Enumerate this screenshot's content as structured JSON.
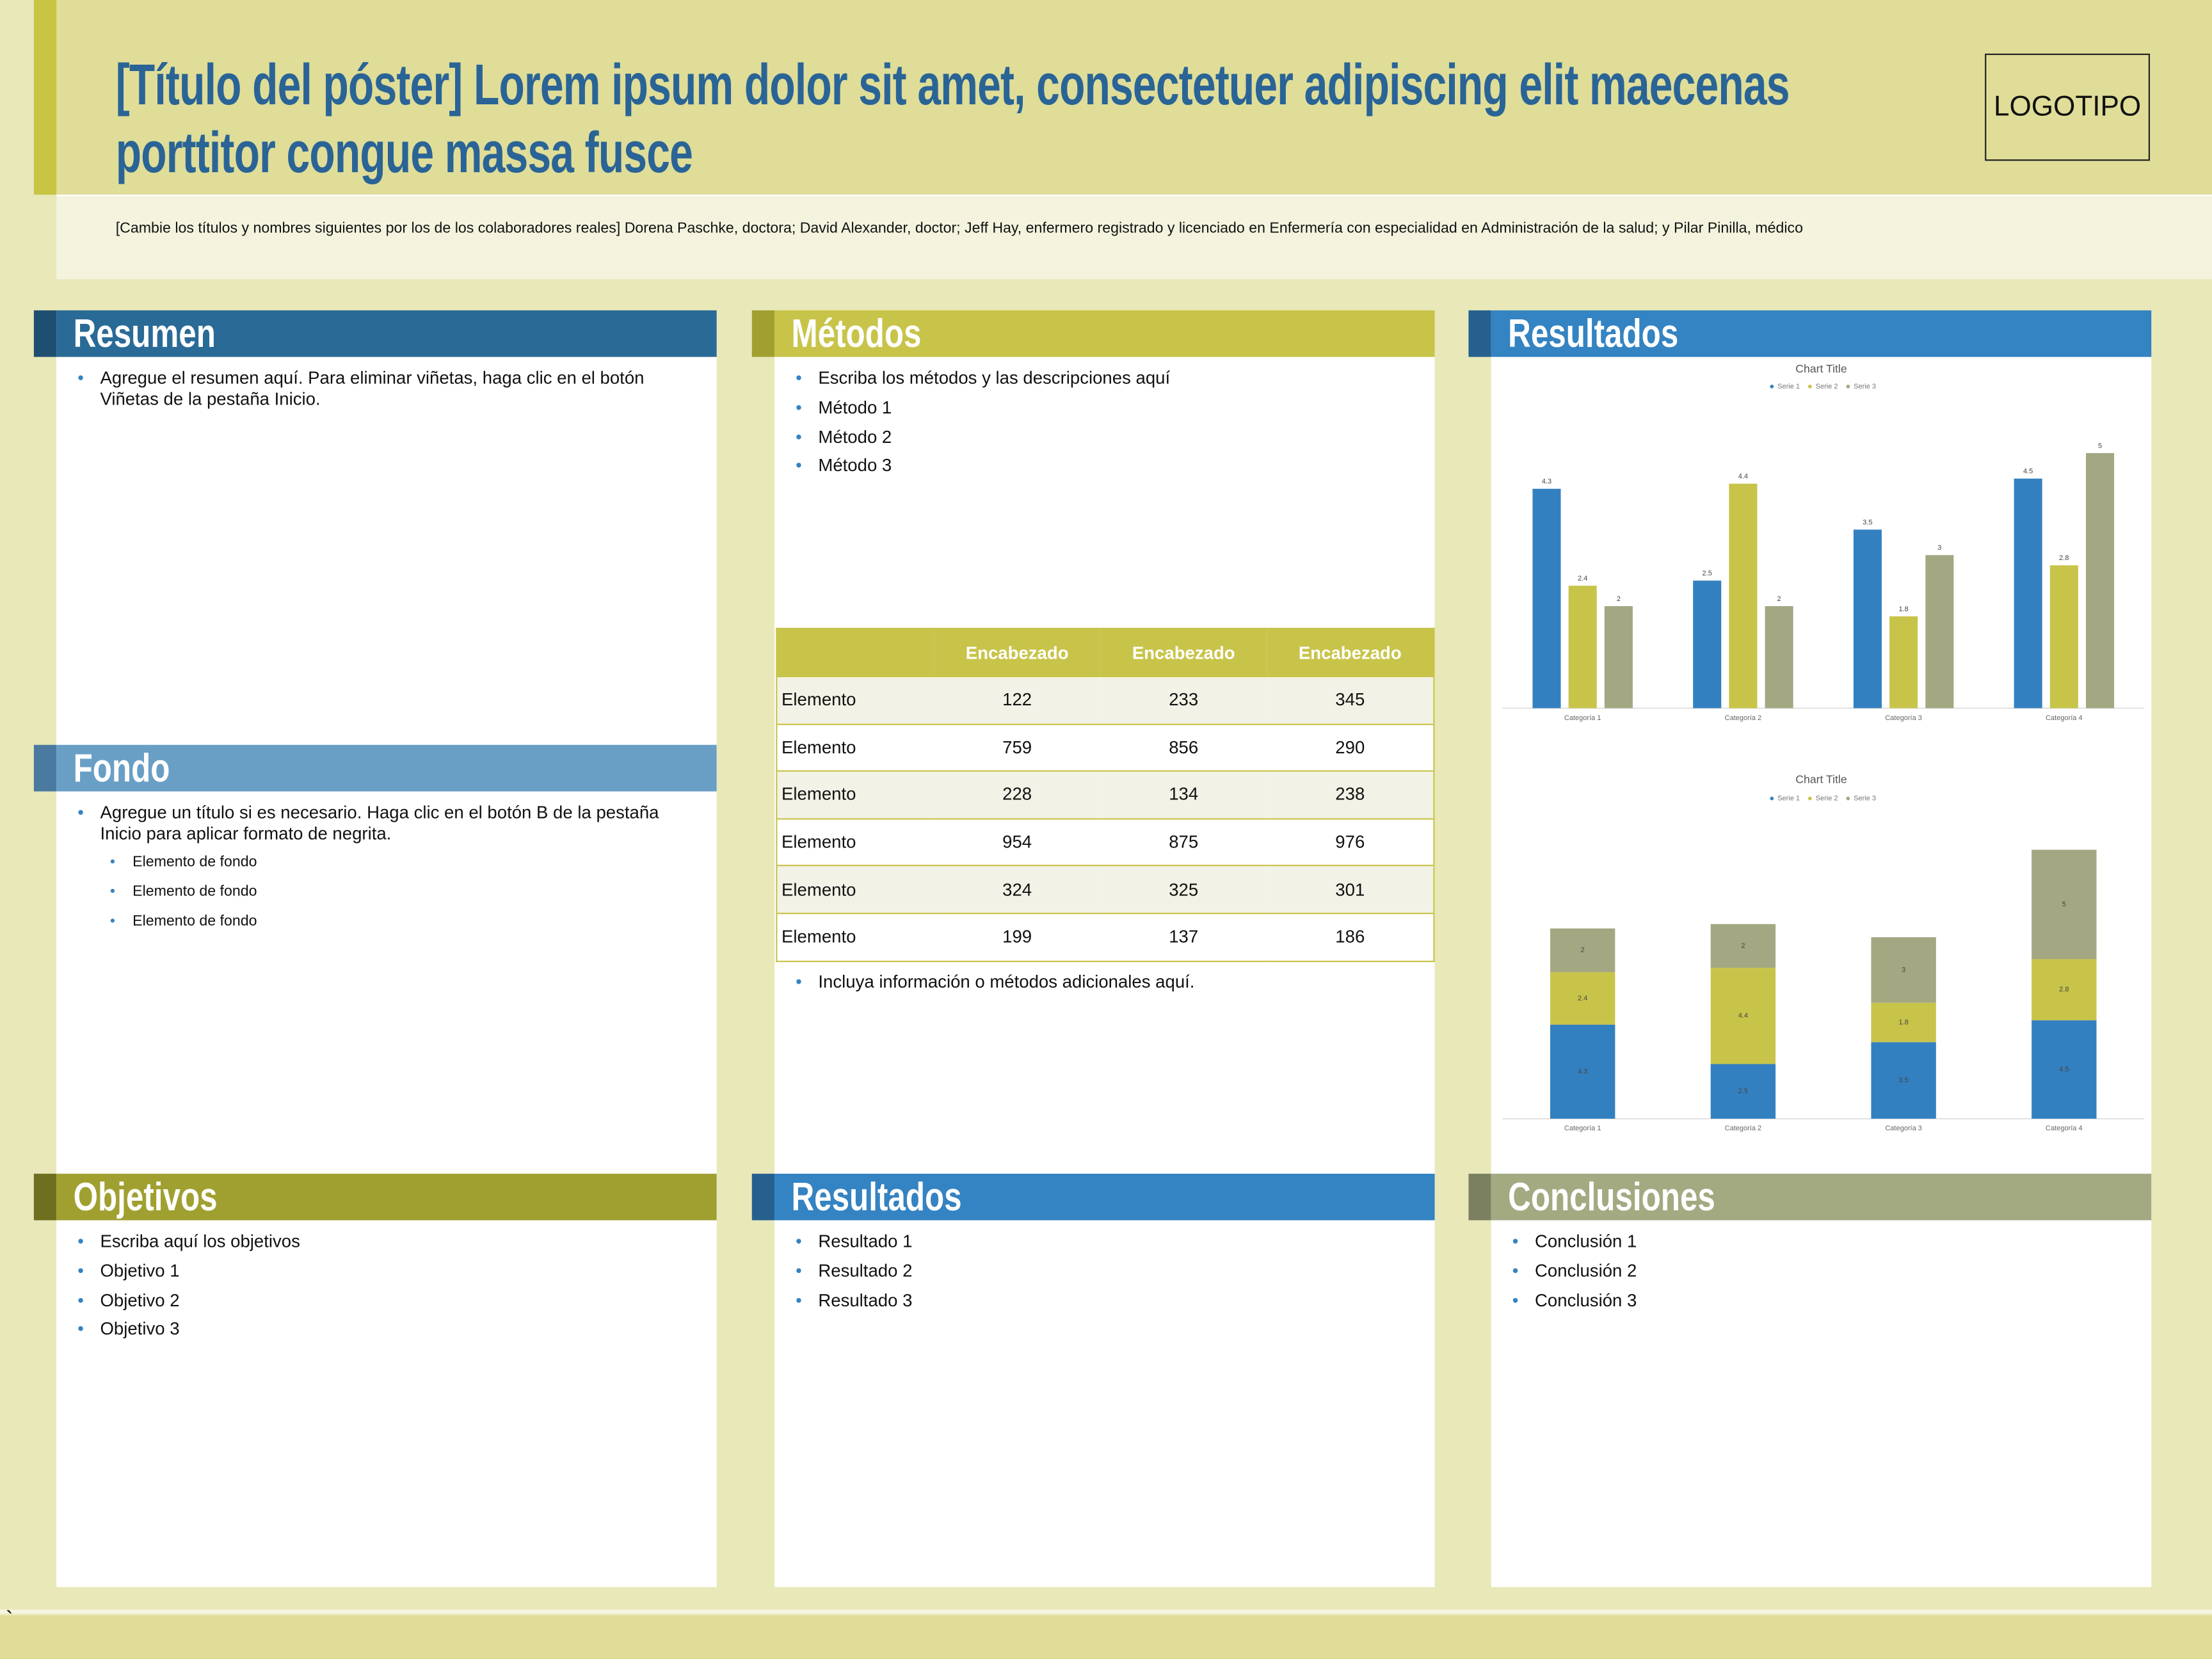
{
  "header": {
    "title": "[Título del póster] Lorem ipsum dolor sit amet, consectetuer adipiscing elit maecenas porttitor congue massa fusce",
    "authors": "[Cambie los títulos y nombres siguientes por los de los colaboradores reales] Dorena Paschke, doctora; David Alexander, doctor; Jeff Hay, enfermero registrado y licenciado en Enfermería con especialidad en Administración de la salud; y Pilar Pinilla, médico",
    "logo": "LOGOTIPO"
  },
  "panels": {
    "resumen": {
      "heading": "Resumen",
      "bullets": [
        "Agregue el resumen aquí. Para eliminar viñetas, haga clic en el botón Viñetas de la pestaña Inicio."
      ]
    },
    "fondo": {
      "heading": "Fondo",
      "bullets": [
        "Agregue un título si es necesario. Haga clic en el botón B de la pestaña Inicio para aplicar formato de negrita."
      ],
      "sub_bullets": [
        "Elemento de fondo",
        "Elemento de fondo",
        "Elemento de fondo"
      ]
    },
    "metodos": {
      "heading": "Métodos",
      "bullets": [
        "Escriba los métodos y las descripciones aquí",
        "Método 1",
        "Método 2",
        "Método 3"
      ],
      "table": {
        "header": [
          "Encabezado",
          "Encabezado",
          "Encabezado"
        ],
        "rows": [
          [
            "Elemento",
            122,
            233,
            345
          ],
          [
            "Elemento",
            759,
            856,
            290
          ],
          [
            "Elemento",
            228,
            134,
            238
          ],
          [
            "Elemento",
            954,
            875,
            976
          ],
          [
            "Elemento",
            324,
            325,
            301
          ],
          [
            "Elemento",
            199,
            137,
            186
          ]
        ]
      },
      "bullets_after": [
        "Incluya información o métodos adicionales aquí."
      ]
    },
    "resultados": {
      "heading": "Resultados"
    },
    "objetivos": {
      "heading": "Objetivos",
      "bullets": [
        "Escriba aquí los objetivos",
        "Objetivo 1",
        "Objetivo 2",
        "Objetivo 3"
      ]
    },
    "resultados_2": {
      "heading": "Resultados",
      "bullets": [
        "Resultado 1",
        "Resultado 2",
        "Resultado 3"
      ]
    },
    "conclusiones": {
      "heading": "Conclusiones",
      "bullets": [
        "Conclusión 1",
        "Conclusión 2",
        "Conclusión 3"
      ]
    }
  },
  "footer_mark": "`",
  "chart_data": [
    {
      "type": "bar",
      "title": "Chart Title",
      "categories": [
        "Categoría 1",
        "Categoría 2",
        "Categoría 3",
        "Categoría 4"
      ],
      "series": [
        {
          "name": "Serie 1",
          "color": "#3380c0",
          "values": [
            4.3,
            2.5,
            3.5,
            4.5
          ]
        },
        {
          "name": "Serie 2",
          "color": "#c8c44a",
          "values": [
            2.4,
            4.4,
            1.8,
            2.8
          ]
        },
        {
          "name": "Serie 3",
          "color": "#a3a882",
          "values": [
            2,
            2,
            3,
            5
          ]
        }
      ],
      "ylim": [
        0,
        6
      ]
    },
    {
      "type": "stacked_bar",
      "title": "Chart Title",
      "categories": [
        "Categoría 1",
        "Categoría 2",
        "Categoría 3",
        "Categoría 4"
      ],
      "series": [
        {
          "name": "Serie 1",
          "color": "#3380c0",
          "values": [
            4.3,
            2.5,
            3.5,
            4.5
          ]
        },
        {
          "name": "Serie 2",
          "color": "#c8c44a",
          "values": [
            2.4,
            4.4,
            1.8,
            2.8
          ]
        },
        {
          "name": "Serie 3",
          "color": "#a3a882",
          "values": [
            2,
            2,
            3,
            5
          ]
        }
      ],
      "ylim": [
        0,
        14
      ]
    }
  ]
}
